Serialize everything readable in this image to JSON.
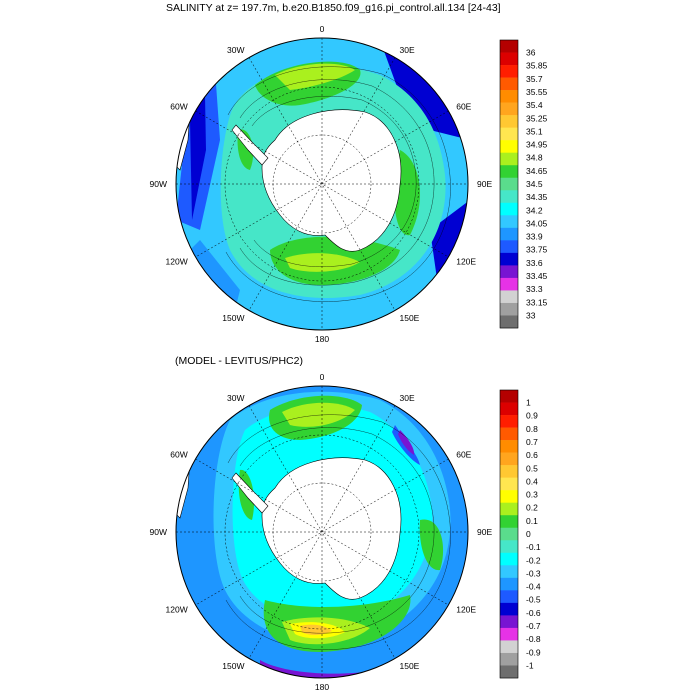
{
  "panels": [
    {
      "title": "SALINITY at z= 197.7m, b.e20.B1850.f09_g16.pi_control.all.134 [24-43]",
      "longitude_labels": [
        "0",
        "30E",
        "60E",
        "90E",
        "120E",
        "150E",
        "180",
        "150W",
        "120W",
        "90W",
        "60W",
        "30W"
      ],
      "colorbar_labels": [
        "36",
        "35.85",
        "35.7",
        "35.55",
        "35.4",
        "35.25",
        "35.1",
        "34.95",
        "34.8",
        "34.65",
        "34.5",
        "34.35",
        "34.2",
        "34.05",
        "33.9",
        "33.75",
        "33.6",
        "33.45",
        "33.3",
        "33.15",
        "33"
      ]
    },
    {
      "title": "(MODEL - LEVITUS/PHC2)",
      "longitude_labels": [
        "0",
        "30E",
        "60E",
        "90E",
        "120E",
        "150E",
        "180",
        "150W",
        "120W",
        "90W",
        "60W",
        "30W"
      ],
      "colorbar_labels": [
        "1",
        "0.9",
        "0.8",
        "0.7",
        "0.6",
        "0.5",
        "0.4",
        "0.3",
        "0.2",
        "0.1",
        "0",
        "-0.1",
        "-0.2",
        "-0.3",
        "-0.4",
        "-0.5",
        "-0.6",
        "-0.7",
        "-0.8",
        "-0.9",
        "-1"
      ]
    }
  ],
  "colorbar_colors": [
    "#b40000",
    "#dc0000",
    "#ff1e00",
    "#ff5a00",
    "#ff8c00",
    "#ffa51e",
    "#ffc832",
    "#ffe650",
    "#ffff00",
    "#aaf01e",
    "#32d232",
    "#5adc8c",
    "#46e6c8",
    "#00ffff",
    "#32c8ff",
    "#1e96ff",
    "#1e5aff",
    "#0000d2",
    "#7814d2",
    "#e632e6",
    "#d2d2d2",
    "#a0a0a0",
    "#6e6e6e"
  ],
  "map_colors": {
    "land": "#ffffff",
    "ocean_deep": "#1e96ff",
    "ocean_mid": "#32c8ff",
    "ocean_light": "#00ffff",
    "green": "#32d232",
    "lightgreen": "#aaf01e",
    "yellow": "#ffff00",
    "blue": "#1e5aff",
    "darkblue": "#0000d2",
    "purple": "#7814d2"
  }
}
